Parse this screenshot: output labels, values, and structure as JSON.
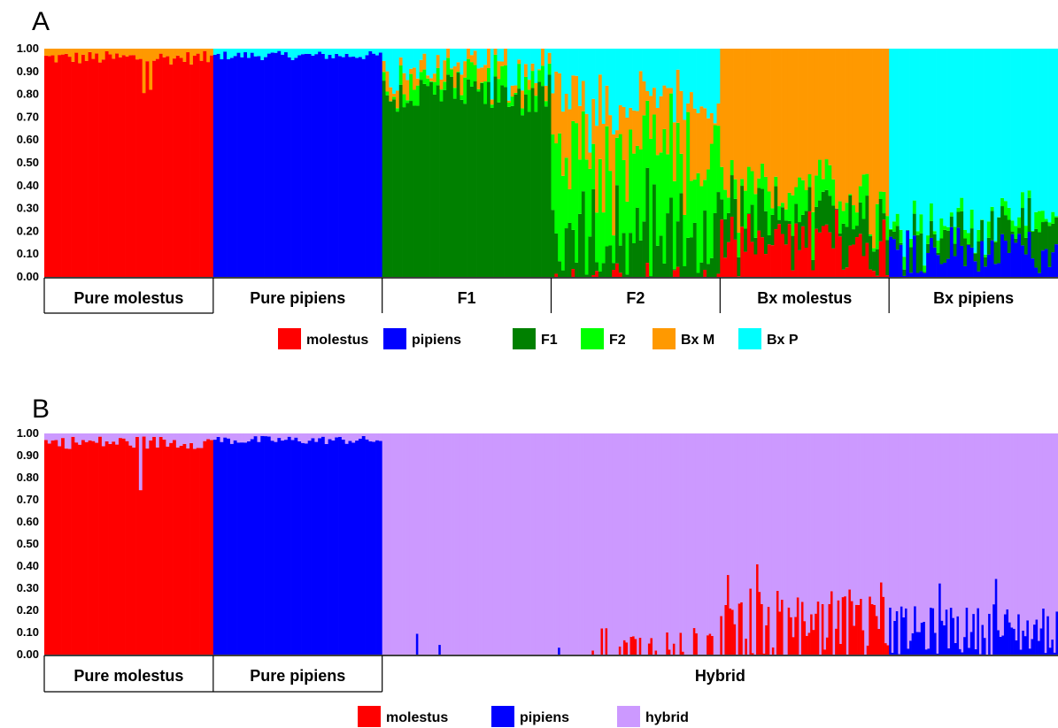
{
  "chart_data": [
    {
      "type": "bar",
      "panel": "A",
      "stacked": true,
      "ylim": [
        0,
        1
      ],
      "y_ticks": [
        "0.00",
        "0.10",
        "0.20",
        "0.30",
        "0.40",
        "0.50",
        "0.60",
        "0.70",
        "0.80",
        "0.90",
        "1.00"
      ],
      "categories": [
        "Pure molestus",
        "Pure pipiens",
        "F1",
        "F2",
        "Bx molestus",
        "Bx pipiens"
      ],
      "individuals_per_group": 50,
      "series": [
        {
          "name": "molestus",
          "color": "#ff0000"
        },
        {
          "name": "pipiens",
          "color": "#0000ff"
        },
        {
          "name": "F1",
          "color": "#008000"
        },
        {
          "name": "F2",
          "color": "#00ff00"
        },
        {
          "name": "Bx M",
          "color": "#ff9900"
        },
        {
          "name": "Bx P",
          "color": "#00ffff"
        }
      ],
      "group_mean_proportions": [
        {
          "group": "Pure molestus",
          "molestus": 0.96,
          "pipiens": 0.0,
          "F1": 0.0,
          "F2": 0.0,
          "Bx M": 0.04,
          "Bx P": 0.0
        },
        {
          "group": "Pure pipiens",
          "molestus": 0.0,
          "pipiens": 0.97,
          "F1": 0.0,
          "F2": 0.0,
          "Bx M": 0.0,
          "Bx P": 0.03
        },
        {
          "group": "F1",
          "molestus": 0.0,
          "pipiens": 0.0,
          "F1": 0.82,
          "F2": 0.07,
          "Bx M": 0.07,
          "Bx P": 0.04
        },
        {
          "group": "F2",
          "molestus": 0.01,
          "pipiens": 0.01,
          "F1": 0.18,
          "F2": 0.3,
          "Bx M": 0.28,
          "Bx P": 0.22
        },
        {
          "group": "Bx molestus",
          "molestus": 0.13,
          "pipiens": 0.0,
          "F1": 0.13,
          "F2": 0.11,
          "Bx M": 0.63,
          "Bx P": 0.0
        },
        {
          "group": "Bx pipiens",
          "molestus": 0.0,
          "pipiens": 0.1,
          "F1": 0.1,
          "F2": 0.05,
          "Bx M": 0.0,
          "Bx P": 0.75
        }
      ]
    },
    {
      "type": "bar",
      "panel": "B",
      "stacked": true,
      "ylim": [
        0,
        1
      ],
      "y_ticks": [
        "0.00",
        "0.10",
        "0.20",
        "0.30",
        "0.40",
        "0.50",
        "0.60",
        "0.70",
        "0.80",
        "0.90",
        "1.00"
      ],
      "categories": [
        "Pure molestus",
        "Pure pipiens",
        "Hybrid"
      ],
      "series": [
        {
          "name": "molestus",
          "color": "#ff0000"
        },
        {
          "name": "pipiens",
          "color": "#0000ff"
        },
        {
          "name": "hybrid",
          "color": "#cc99ff"
        }
      ],
      "group_mean_proportions": [
        {
          "group": "Pure molestus",
          "molestus": 0.96,
          "pipiens": 0.0,
          "hybrid": 0.04
        },
        {
          "group": "Pure pipiens",
          "molestus": 0.0,
          "pipiens": 0.97,
          "hybrid": 0.03
        },
        {
          "group": "Hybrid",
          "molestus": 0.04,
          "pipiens": 0.03,
          "hybrid": 0.93
        }
      ]
    }
  ],
  "panel_labels": {
    "a": "A",
    "b": "B"
  },
  "legend_a": [
    {
      "label": "molestus",
      "color": "#ff0000"
    },
    {
      "label": "pipiens",
      "color": "#0000ff"
    },
    {
      "label": "F1",
      "color": "#008000"
    },
    {
      "label": "F2",
      "color": "#00ff00"
    },
    {
      "label": "Bx M",
      "color": "#ff9900"
    },
    {
      "label": "Bx P",
      "color": "#00ffff"
    }
  ],
  "legend_b": [
    {
      "label": "molestus",
      "color": "#ff0000"
    },
    {
      "label": "pipiens",
      "color": "#0000ff"
    },
    {
      "label": "hybrid",
      "color": "#cc99ff"
    }
  ],
  "group_labels_a": [
    "Pure molestus",
    "Pure pipiens",
    "F1",
    "F2",
    "Bx molestus",
    "Bx pipiens"
  ],
  "group_labels_b": [
    "Pure molestus",
    "Pure pipiens",
    "Hybrid"
  ]
}
